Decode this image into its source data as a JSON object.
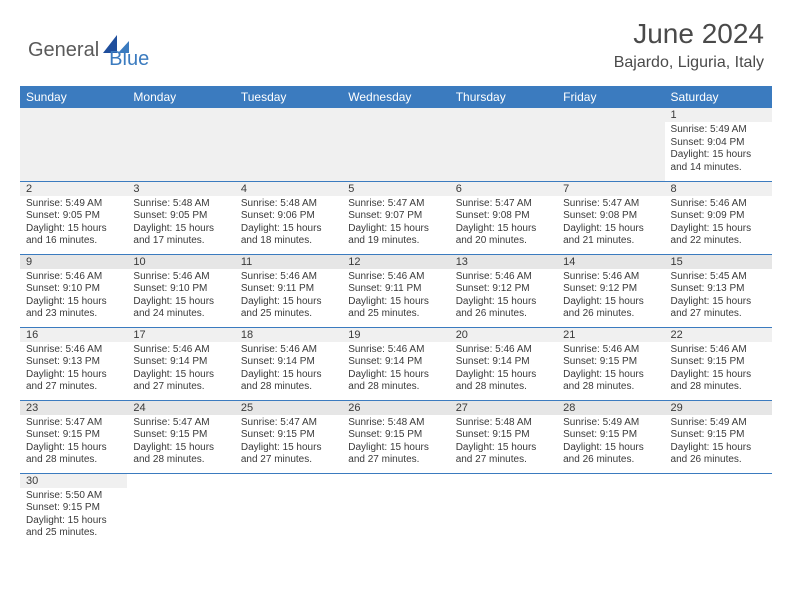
{
  "brand": {
    "part1": "General",
    "part2": "Blue"
  },
  "title": "June 2024",
  "location": "Bajardo, Liguria, Italy",
  "colors": {
    "header_bg": "#3b7bbf",
    "header_fg": "#ffffff",
    "daynum_bg_odd": "#f0f0f0",
    "daynum_bg_even": "#e6e6e6",
    "border": "#3b7bbf",
    "text": "#3a3a3a",
    "logo_gray": "#5a5a5a",
    "logo_blue": "#3b7bbf"
  },
  "weekdays": [
    "Sunday",
    "Monday",
    "Tuesday",
    "Wednesday",
    "Thursday",
    "Friday",
    "Saturday"
  ],
  "weeks": [
    [
      null,
      null,
      null,
      null,
      null,
      null,
      {
        "d": "1",
        "sr": "Sunrise: 5:49 AM",
        "ss": "Sunset: 9:04 PM",
        "dl1": "Daylight: 15 hours",
        "dl2": "and 14 minutes."
      }
    ],
    [
      {
        "d": "2",
        "sr": "Sunrise: 5:49 AM",
        "ss": "Sunset: 9:05 PM",
        "dl1": "Daylight: 15 hours",
        "dl2": "and 16 minutes."
      },
      {
        "d": "3",
        "sr": "Sunrise: 5:48 AM",
        "ss": "Sunset: 9:05 PM",
        "dl1": "Daylight: 15 hours",
        "dl2": "and 17 minutes."
      },
      {
        "d": "4",
        "sr": "Sunrise: 5:48 AM",
        "ss": "Sunset: 9:06 PM",
        "dl1": "Daylight: 15 hours",
        "dl2": "and 18 minutes."
      },
      {
        "d": "5",
        "sr": "Sunrise: 5:47 AM",
        "ss": "Sunset: 9:07 PM",
        "dl1": "Daylight: 15 hours",
        "dl2": "and 19 minutes."
      },
      {
        "d": "6",
        "sr": "Sunrise: 5:47 AM",
        "ss": "Sunset: 9:08 PM",
        "dl1": "Daylight: 15 hours",
        "dl2": "and 20 minutes."
      },
      {
        "d": "7",
        "sr": "Sunrise: 5:47 AM",
        "ss": "Sunset: 9:08 PM",
        "dl1": "Daylight: 15 hours",
        "dl2": "and 21 minutes."
      },
      {
        "d": "8",
        "sr": "Sunrise: 5:46 AM",
        "ss": "Sunset: 9:09 PM",
        "dl1": "Daylight: 15 hours",
        "dl2": "and 22 minutes."
      }
    ],
    [
      {
        "d": "9",
        "sr": "Sunrise: 5:46 AM",
        "ss": "Sunset: 9:10 PM",
        "dl1": "Daylight: 15 hours",
        "dl2": "and 23 minutes."
      },
      {
        "d": "10",
        "sr": "Sunrise: 5:46 AM",
        "ss": "Sunset: 9:10 PM",
        "dl1": "Daylight: 15 hours",
        "dl2": "and 24 minutes."
      },
      {
        "d": "11",
        "sr": "Sunrise: 5:46 AM",
        "ss": "Sunset: 9:11 PM",
        "dl1": "Daylight: 15 hours",
        "dl2": "and 25 minutes."
      },
      {
        "d": "12",
        "sr": "Sunrise: 5:46 AM",
        "ss": "Sunset: 9:11 PM",
        "dl1": "Daylight: 15 hours",
        "dl2": "and 25 minutes."
      },
      {
        "d": "13",
        "sr": "Sunrise: 5:46 AM",
        "ss": "Sunset: 9:12 PM",
        "dl1": "Daylight: 15 hours",
        "dl2": "and 26 minutes."
      },
      {
        "d": "14",
        "sr": "Sunrise: 5:46 AM",
        "ss": "Sunset: 9:12 PM",
        "dl1": "Daylight: 15 hours",
        "dl2": "and 26 minutes."
      },
      {
        "d": "15",
        "sr": "Sunrise: 5:45 AM",
        "ss": "Sunset: 9:13 PM",
        "dl1": "Daylight: 15 hours",
        "dl2": "and 27 minutes."
      }
    ],
    [
      {
        "d": "16",
        "sr": "Sunrise: 5:46 AM",
        "ss": "Sunset: 9:13 PM",
        "dl1": "Daylight: 15 hours",
        "dl2": "and 27 minutes."
      },
      {
        "d": "17",
        "sr": "Sunrise: 5:46 AM",
        "ss": "Sunset: 9:14 PM",
        "dl1": "Daylight: 15 hours",
        "dl2": "and 27 minutes."
      },
      {
        "d": "18",
        "sr": "Sunrise: 5:46 AM",
        "ss": "Sunset: 9:14 PM",
        "dl1": "Daylight: 15 hours",
        "dl2": "and 28 minutes."
      },
      {
        "d": "19",
        "sr": "Sunrise: 5:46 AM",
        "ss": "Sunset: 9:14 PM",
        "dl1": "Daylight: 15 hours",
        "dl2": "and 28 minutes."
      },
      {
        "d": "20",
        "sr": "Sunrise: 5:46 AM",
        "ss": "Sunset: 9:14 PM",
        "dl1": "Daylight: 15 hours",
        "dl2": "and 28 minutes."
      },
      {
        "d": "21",
        "sr": "Sunrise: 5:46 AM",
        "ss": "Sunset: 9:15 PM",
        "dl1": "Daylight: 15 hours",
        "dl2": "and 28 minutes."
      },
      {
        "d": "22",
        "sr": "Sunrise: 5:46 AM",
        "ss": "Sunset: 9:15 PM",
        "dl1": "Daylight: 15 hours",
        "dl2": "and 28 minutes."
      }
    ],
    [
      {
        "d": "23",
        "sr": "Sunrise: 5:47 AM",
        "ss": "Sunset: 9:15 PM",
        "dl1": "Daylight: 15 hours",
        "dl2": "and 28 minutes."
      },
      {
        "d": "24",
        "sr": "Sunrise: 5:47 AM",
        "ss": "Sunset: 9:15 PM",
        "dl1": "Daylight: 15 hours",
        "dl2": "and 28 minutes."
      },
      {
        "d": "25",
        "sr": "Sunrise: 5:47 AM",
        "ss": "Sunset: 9:15 PM",
        "dl1": "Daylight: 15 hours",
        "dl2": "and 27 minutes."
      },
      {
        "d": "26",
        "sr": "Sunrise: 5:48 AM",
        "ss": "Sunset: 9:15 PM",
        "dl1": "Daylight: 15 hours",
        "dl2": "and 27 minutes."
      },
      {
        "d": "27",
        "sr": "Sunrise: 5:48 AM",
        "ss": "Sunset: 9:15 PM",
        "dl1": "Daylight: 15 hours",
        "dl2": "and 27 minutes."
      },
      {
        "d": "28",
        "sr": "Sunrise: 5:49 AM",
        "ss": "Sunset: 9:15 PM",
        "dl1": "Daylight: 15 hours",
        "dl2": "and 26 minutes."
      },
      {
        "d": "29",
        "sr": "Sunrise: 5:49 AM",
        "ss": "Sunset: 9:15 PM",
        "dl1": "Daylight: 15 hours",
        "dl2": "and 26 minutes."
      }
    ],
    [
      {
        "d": "30",
        "sr": "Sunrise: 5:50 AM",
        "ss": "Sunset: 9:15 PM",
        "dl1": "Daylight: 15 hours",
        "dl2": "and 25 minutes."
      },
      null,
      null,
      null,
      null,
      null,
      null
    ]
  ]
}
